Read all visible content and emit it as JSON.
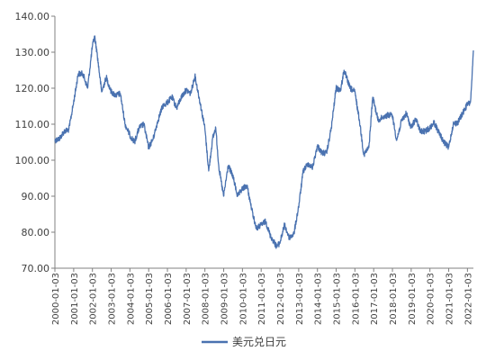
{
  "chart_data": {
    "type": "line",
    "title": "",
    "xlabel": "",
    "ylabel": "",
    "ylim": [
      70,
      140
    ],
    "y_ticks": [
      "70.00",
      "80.00",
      "90.00",
      "100.00",
      "110.00",
      "120.00",
      "130.00",
      "140.00"
    ],
    "x_ticks": [
      "2000-01-03",
      "2001-01-03",
      "2002-01-03",
      "2003-01-03",
      "2004-01-03",
      "2005-01-03",
      "2006-01-03",
      "2007-01-03",
      "2008-01-03",
      "2009-01-03",
      "2010-01-03",
      "2011-01-03",
      "2012-01-03",
      "2013-01-03",
      "2014-01-03",
      "2015-01-03",
      "2016-01-03",
      "2017-01-03",
      "2018-01-03",
      "2019-01-03",
      "2020-01-03",
      "2021-01-03",
      "2022-01-03"
    ],
    "grid": false,
    "legend_position": "bottom",
    "series": [
      {
        "name": "美元兑日元",
        "color": "#4a72b0",
        "x": [
          "2000-01-03",
          "2000-04-01",
          "2000-07-01",
          "2000-10-01",
          "2001-01-01",
          "2001-04-01",
          "2001-07-01",
          "2001-10-01",
          "2002-01-01",
          "2002-02-15",
          "2002-04-01",
          "2002-07-01",
          "2002-10-01",
          "2003-01-01",
          "2003-04-01",
          "2003-07-01",
          "2003-10-01",
          "2004-01-01",
          "2004-04-01",
          "2004-07-01",
          "2004-10-01",
          "2005-01-01",
          "2005-04-01",
          "2005-07-01",
          "2005-10-01",
          "2006-01-01",
          "2006-04-01",
          "2006-07-01",
          "2006-10-01",
          "2007-01-01",
          "2007-04-01",
          "2007-06-22",
          "2007-10-01",
          "2008-01-01",
          "2008-03-17",
          "2008-06-01",
          "2008-08-01",
          "2008-10-01",
          "2009-01-01",
          "2009-04-01",
          "2009-07-01",
          "2009-10-01",
          "2010-01-01",
          "2010-04-01",
          "2010-07-01",
          "2010-10-01",
          "2011-01-01",
          "2011-04-01",
          "2011-07-01",
          "2011-10-31",
          "2012-01-01",
          "2012-04-01",
          "2012-07-01",
          "2012-10-01",
          "2013-01-01",
          "2013-04-01",
          "2013-07-01",
          "2013-10-01",
          "2014-01-01",
          "2014-04-01",
          "2014-07-01",
          "2014-10-01",
          "2015-01-01",
          "2015-04-01",
          "2015-06-05",
          "2015-10-01",
          "2016-01-01",
          "2016-04-01",
          "2016-06-24",
          "2016-10-01",
          "2016-12-15",
          "2017-04-01",
          "2017-07-01",
          "2017-10-01",
          "2018-01-01",
          "2018-03-26",
          "2018-07-01",
          "2018-10-01",
          "2019-01-01",
          "2019-04-01",
          "2019-07-01",
          "2019-10-01",
          "2020-01-01",
          "2020-03-24",
          "2020-07-01",
          "2020-10-01",
          "2021-01-01",
          "2021-04-01",
          "2021-07-01",
          "2021-10-01",
          "2022-01-01",
          "2022-03-01",
          "2022-04-01",
          "2022-04-29"
        ],
        "values": [
          105.5,
          106.0,
          108.0,
          108.5,
          116.0,
          124.0,
          124.0,
          120.0,
          131.5,
          134.5,
          130.0,
          119.0,
          123.0,
          119.0,
          118.0,
          118.5,
          110.0,
          107.0,
          105.0,
          109.0,
          110.0,
          103.5,
          106.0,
          111.0,
          115.0,
          116.0,
          117.5,
          114.5,
          117.5,
          119.5,
          118.5,
          123.5,
          116.0,
          109.0,
          97.0,
          106.0,
          109.0,
          98.0,
          90.0,
          98.5,
          95.5,
          90.0,
          92.0,
          93.0,
          86.5,
          81.0,
          82.0,
          83.0,
          79.0,
          76.0,
          77.0,
          82.0,
          78.5,
          79.5,
          87.0,
          97.0,
          99.0,
          98.0,
          104.0,
          102.0,
          102.0,
          109.0,
          120.0,
          119.5,
          125.0,
          120.0,
          119.0,
          111.0,
          101.5,
          103.5,
          117.5,
          111.0,
          112.0,
          112.5,
          112.5,
          105.5,
          111.0,
          113.0,
          109.0,
          111.5,
          108.0,
          108.0,
          109.0,
          110.5,
          107.5,
          105.0,
          103.5,
          110.0,
          110.5,
          113.0,
          115.5,
          116.0,
          122.5,
          130.5
        ]
      }
    ]
  }
}
